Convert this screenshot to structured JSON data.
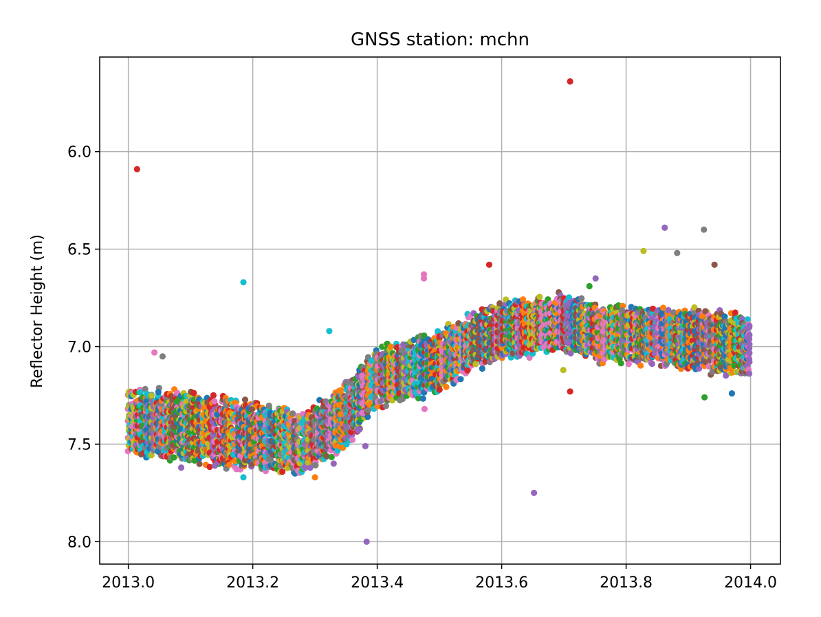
{
  "chart_data": {
    "type": "scatter",
    "title": "GNSS station: mchn",
    "xlabel": "",
    "ylabel": "Reflector Height (m)",
    "xlim": [
      2012.954,
      2014.048
    ],
    "ylim": [
      8.115,
      5.515
    ],
    "y_inverted": true,
    "grid": true,
    "xticks": [
      2013.0,
      2013.2,
      2013.4,
      2013.6,
      2013.8,
      2014.0
    ],
    "xtick_labels": [
      "2013.0",
      "2013.2",
      "2013.4",
      "2013.6",
      "2013.8",
      "2014.0"
    ],
    "yticks": [
      6.0,
      6.5,
      7.0,
      7.5,
      8.0
    ],
    "ytick_labels": [
      "6.0",
      "6.5",
      "7.0",
      "7.5",
      "8.0"
    ],
    "colors": [
      "#1f77b4",
      "#ff7f0e",
      "#2ca02c",
      "#d62728",
      "#9467bd",
      "#8c564b",
      "#e377c2",
      "#7f7f7f",
      "#bcbd22",
      "#17becf"
    ],
    "band": [
      [
        2013.0,
        7.38,
        0.18
      ],
      [
        2013.05,
        7.4,
        0.2
      ],
      [
        2013.1,
        7.42,
        0.2
      ],
      [
        2013.15,
        7.44,
        0.2
      ],
      [
        2013.2,
        7.46,
        0.2
      ],
      [
        2013.25,
        7.48,
        0.18
      ],
      [
        2013.28,
        7.5,
        0.18
      ],
      [
        2013.32,
        7.42,
        0.18
      ],
      [
        2013.36,
        7.32,
        0.18
      ],
      [
        2013.4,
        7.16,
        0.17
      ],
      [
        2013.45,
        7.12,
        0.17
      ],
      [
        2013.5,
        7.08,
        0.17
      ],
      [
        2013.55,
        6.98,
        0.17
      ],
      [
        2013.6,
        6.92,
        0.16
      ],
      [
        2013.65,
        6.9,
        0.16
      ],
      [
        2013.7,
        6.88,
        0.16
      ],
      [
        2013.76,
        6.93,
        0.16
      ],
      [
        2013.8,
        6.94,
        0.16
      ],
      [
        2013.85,
        6.95,
        0.16
      ],
      [
        2013.9,
        6.96,
        0.17
      ],
      [
        2013.95,
        6.98,
        0.18
      ],
      [
        2014.0,
        7.0,
        0.18
      ]
    ],
    "outliers": [
      {
        "x": 2013.014,
        "y": 6.09,
        "c": 3
      },
      {
        "x": 2013.71,
        "y": 5.64,
        "c": 3
      },
      {
        "x": 2013.185,
        "y": 6.67,
        "c": 9
      },
      {
        "x": 2013.323,
        "y": 6.92,
        "c": 9
      },
      {
        "x": 2013.652,
        "y": 7.75,
        "c": 4
      },
      {
        "x": 2013.383,
        "y": 8.0,
        "c": 4
      },
      {
        "x": 2013.185,
        "y": 7.67,
        "c": 9
      },
      {
        "x": 2013.862,
        "y": 6.39,
        "c": 4
      },
      {
        "x": 2013.925,
        "y": 6.4,
        "c": 7
      },
      {
        "x": 2013.828,
        "y": 6.51,
        "c": 8
      },
      {
        "x": 2013.882,
        "y": 6.52,
        "c": 7
      },
      {
        "x": 2013.942,
        "y": 6.58,
        "c": 5
      },
      {
        "x": 2013.58,
        "y": 6.58,
        "c": 3
      },
      {
        "x": 2013.475,
        "y": 6.63,
        "c": 6
      },
      {
        "x": 2013.475,
        "y": 6.65,
        "c": 6
      },
      {
        "x": 2013.751,
        "y": 6.65,
        "c": 4
      },
      {
        "x": 2013.741,
        "y": 6.69,
        "c": 2
      },
      {
        "x": 2013.085,
        "y": 7.62,
        "c": 4
      },
      {
        "x": 2013.3,
        "y": 7.67,
        "c": 1
      },
      {
        "x": 2013.33,
        "y": 7.6,
        "c": 4
      },
      {
        "x": 2013.71,
        "y": 7.23,
        "c": 3
      },
      {
        "x": 2013.926,
        "y": 7.26,
        "c": 2
      },
      {
        "x": 2013.476,
        "y": 7.32,
        "c": 6
      },
      {
        "x": 2013.381,
        "y": 7.51,
        "c": 4
      },
      {
        "x": 2013.699,
        "y": 7.12,
        "c": 8
      },
      {
        "x": 2013.042,
        "y": 7.03,
        "c": 6
      },
      {
        "x": 2013.055,
        "y": 7.05,
        "c": 7
      },
      {
        "x": 2013.97,
        "y": 7.24,
        "c": 0
      }
    ]
  }
}
